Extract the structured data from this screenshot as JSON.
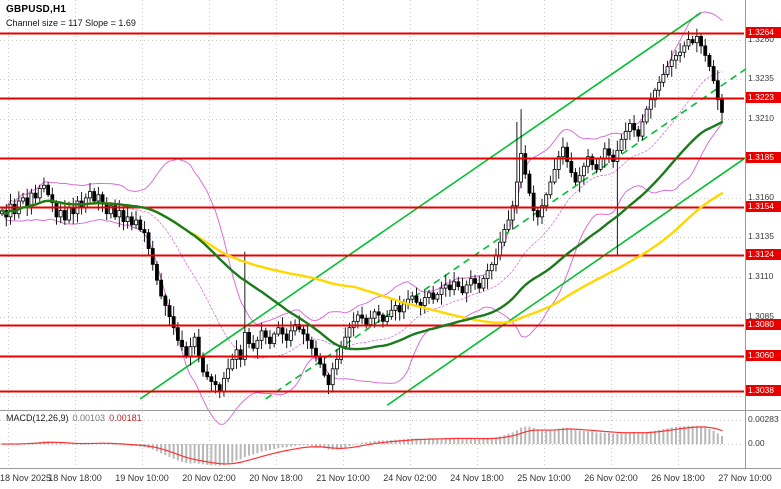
{
  "header": {
    "symbol_label": "GBPUSD,H1",
    "channel_label": "Channel size = 117 Slope = 1.69"
  },
  "chart_data": {
    "type": "candlestick",
    "symbol": "GBPUSD",
    "timeframe": "H1",
    "price_axis": {
      "p_max": 1.3285,
      "p_min": 1.3026,
      "grid_step": 0.0025,
      "grid_prices": [
        1.326,
        1.3235,
        1.321,
        1.3185,
        1.316,
        1.3135,
        1.311,
        1.3085,
        1.306,
        1.3035
      ],
      "visible_labels": [
        {
          "value": 1.326,
          "text": "1.3260"
        },
        {
          "value": 1.3235,
          "text": "1.3235"
        },
        {
          "value": 1.321,
          "text": "1.3210"
        },
        {
          "value": 1.316,
          "text": "1.3160"
        },
        {
          "value": 1.3135,
          "text": "1.3135"
        },
        {
          "value": 1.311,
          "text": "1.3110"
        },
        {
          "value": 1.3085,
          "text": "1.3085"
        }
      ]
    },
    "time_axis": {
      "slot_count": 178,
      "ticks": [
        {
          "bar": 2,
          "label": "18 Nov 2025"
        },
        {
          "bar": 18,
          "label": "18 Nov 18:00"
        },
        {
          "bar": 34,
          "label": "19 Nov 10:00"
        },
        {
          "bar": 50,
          "label": "20 Nov 02:00"
        },
        {
          "bar": 66,
          "label": "20 Nov 18:00"
        },
        {
          "bar": 82,
          "label": "21 Nov 10:00"
        },
        {
          "bar": 98,
          "label": "24 Nov 02:00"
        },
        {
          "bar": 114,
          "label": "24 Nov 18:00"
        },
        {
          "bar": 130,
          "label": "25 Nov 10:00"
        },
        {
          "bar": 146,
          "label": "26 Nov 02:00"
        },
        {
          "bar": 162,
          "label": "26 Nov 18:00"
        },
        {
          "bar": 178,
          "label": "27 Nov 10:00"
        }
      ]
    },
    "series": {
      "first_open": 1.315,
      "closes": [
        1.3152,
        1.3148,
        1.3156,
        1.315,
        1.3158,
        1.316,
        1.3155,
        1.3163,
        1.316,
        1.3166,
        1.3168,
        1.3162,
        1.3157,
        1.3148,
        1.3152,
        1.3146,
        1.3154,
        1.315,
        1.3158,
        1.3154,
        1.316,
        1.3164,
        1.3158,
        1.3162,
        1.3156,
        1.315,
        1.3155,
        1.3148,
        1.3152,
        1.3145,
        1.3148,
        1.3143,
        1.3146,
        1.314,
        1.3138,
        1.3128,
        1.3118,
        1.3108,
        1.3098,
        1.3092,
        1.3085,
        1.3078,
        1.307,
        1.3066,
        1.306,
        1.3066,
        1.3072,
        1.306,
        1.305,
        1.3047,
        1.3044,
        1.3042,
        1.3038,
        1.3046,
        1.3052,
        1.3058,
        1.3064,
        1.3058,
        1.3075,
        1.3068,
        1.3065,
        1.307,
        1.3076,
        1.3072,
        1.3068,
        1.3074,
        1.3078,
        1.3074,
        1.307,
        1.3076,
        1.308,
        1.3077,
        1.3074,
        1.307,
        1.3065,
        1.306,
        1.3055,
        1.3048,
        1.3042,
        1.3052,
        1.3058,
        1.3066,
        1.3072,
        1.3078,
        1.3082,
        1.3086,
        1.3084,
        1.308,
        1.3084,
        1.3088,
        1.3086,
        1.3082,
        1.3085,
        1.3089,
        1.3092,
        1.3088,
        1.3093,
        1.3096,
        1.3098,
        1.3094,
        1.3092,
        1.3097,
        1.31,
        1.3096,
        1.3099,
        1.3103,
        1.3105,
        1.3102,
        1.3107,
        1.3104,
        1.31,
        1.3105,
        1.3109,
        1.3106,
        1.3103,
        1.3109,
        1.3114,
        1.3118,
        1.3124,
        1.3132,
        1.314,
        1.3146,
        1.3155,
        1.317,
        1.3188,
        1.3175,
        1.3163,
        1.3152,
        1.3148,
        1.3155,
        1.3162,
        1.317,
        1.3178,
        1.3186,
        1.3192,
        1.3183,
        1.3176,
        1.317,
        1.3174,
        1.318,
        1.3186,
        1.3181,
        1.3178,
        1.3185,
        1.3191,
        1.3187,
        1.3183,
        1.319,
        1.3197,
        1.3202,
        1.3207,
        1.3203,
        1.3199,
        1.3208,
        1.3216,
        1.3222,
        1.3228,
        1.3233,
        1.3238,
        1.3243,
        1.3247,
        1.325,
        1.3252,
        1.3256,
        1.326,
        1.3258,
        1.3262,
        1.3256,
        1.325,
        1.3243,
        1.3234,
        1.3222,
        1.3214
      ],
      "spikes": [
        {
          "bar": 52,
          "low": 1.3034
        },
        {
          "bar": 58,
          "high": 1.3126
        },
        {
          "bar": 78,
          "low": 1.304
        },
        {
          "bar": 123,
          "high": 1.3208
        },
        {
          "bar": 124,
          "high": 1.3216
        },
        {
          "bar": 147,
          "low": 1.3124
        },
        {
          "bar": 166,
          "high": 1.3266
        }
      ]
    },
    "overlays": {
      "ma_fast": {
        "period": 45,
        "color": "#1b7a1b",
        "width": 2.4
      },
      "ma_slow": {
        "period": 85,
        "color": "#ffd800",
        "width": 2.4
      },
      "bollinger": {
        "period": 20,
        "mult": 2,
        "color": "#d96fd9",
        "width": 1
      }
    },
    "levels": [
      {
        "price": 1.3264,
        "label": "1.3264"
      },
      {
        "price": 1.3223,
        "label": "1.3223"
      },
      {
        "price": 1.3185,
        "label": "1.3185"
      },
      {
        "price": 1.3154,
        "label": "1.3154"
      },
      {
        "price": 1.3124,
        "label": "1.3124"
      },
      {
        "price": 1.308,
        "label": "1.3080"
      },
      {
        "price": 1.306,
        "label": "1.3060"
      },
      {
        "price": 1.3038,
        "label": "1.3038"
      }
    ],
    "levels_color": "#e80000",
    "trend_lines": [
      {
        "b1": 33,
        "p1": 1.3033,
        "b2": 167,
        "p2": 1.3277,
        "style": "solid",
        "color": "#00c030"
      },
      {
        "b1": 92,
        "p1": 1.3029,
        "b2": 178,
        "p2": 1.3186,
        "style": "solid",
        "color": "#00c030"
      },
      {
        "b1": 63,
        "p1": 1.3033,
        "b2": 178,
        "p2": 1.3242,
        "style": "dashed",
        "color": "#00c030"
      }
    ],
    "macd": {
      "label": "MACD(12,26,9)",
      "value_main": "0.00103",
      "value_signal": "0.00181",
      "params": [
        12,
        26,
        9
      ],
      "histogram_color": "#b8b8b8",
      "signal_color": "#ff3333",
      "axis_labels": [
        {
          "text": "0.00283",
          "value": 0.00283
        },
        {
          "text": "0.00",
          "value": 0
        }
      ]
    }
  }
}
